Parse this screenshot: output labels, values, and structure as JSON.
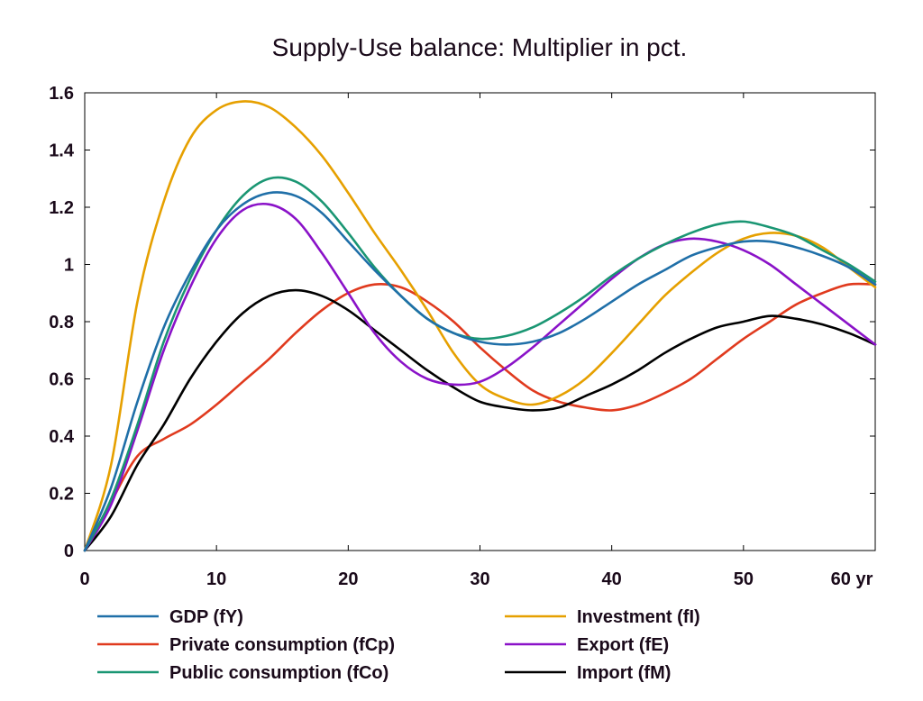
{
  "chart_data": {
    "type": "line",
    "title": "Supply-Use balance: Multiplier in pct.",
    "xlabel": "",
    "ylabel": "",
    "x_unit_label": "yr",
    "xlim": [
      0,
      60
    ],
    "ylim": [
      0,
      1.6
    ],
    "x_ticks": [
      0,
      10,
      20,
      30,
      40,
      50,
      60
    ],
    "x_tick_labels": [
      "0",
      "10",
      "20",
      "30",
      "40",
      "50",
      "60 yr"
    ],
    "y_ticks": [
      0,
      0.2,
      0.4,
      0.6,
      0.8,
      1.0,
      1.2,
      1.4,
      1.6
    ],
    "y_tick_labels": [
      "0",
      "0.2",
      "0.4",
      "0.6",
      "0.8",
      "1",
      "1.2",
      "1.4",
      "1.6"
    ],
    "grid": false,
    "legend_position": "bottom",
    "x": [
      0,
      2,
      4,
      6,
      8,
      10,
      12,
      14,
      16,
      18,
      20,
      22,
      24,
      26,
      28,
      30,
      32,
      34,
      36,
      38,
      40,
      42,
      44,
      46,
      48,
      50,
      52,
      54,
      56,
      58,
      60
    ],
    "series": [
      {
        "name": "GDP (fY)",
        "color": "#1f6fa8",
        "values": [
          0,
          0.22,
          0.52,
          0.78,
          0.97,
          1.12,
          1.21,
          1.25,
          1.24,
          1.18,
          1.08,
          0.98,
          0.89,
          0.81,
          0.76,
          0.73,
          0.72,
          0.73,
          0.76,
          0.81,
          0.87,
          0.93,
          0.98,
          1.03,
          1.06,
          1.08,
          1.08,
          1.06,
          1.03,
          0.99,
          0.93
        ]
      },
      {
        "name": "Private consumption (fCp)",
        "color": "#e03a1e",
        "values": [
          0,
          0.17,
          0.33,
          0.39,
          0.44,
          0.51,
          0.59,
          0.67,
          0.76,
          0.84,
          0.9,
          0.93,
          0.92,
          0.87,
          0.8,
          0.71,
          0.63,
          0.56,
          0.52,
          0.5,
          0.49,
          0.51,
          0.55,
          0.6,
          0.67,
          0.74,
          0.8,
          0.86,
          0.9,
          0.93,
          0.93
        ]
      },
      {
        "name": "Public consumption (fCo)",
        "color": "#1a9673",
        "values": [
          0,
          0.18,
          0.44,
          0.73,
          0.95,
          1.12,
          1.24,
          1.3,
          1.29,
          1.22,
          1.11,
          0.99,
          0.89,
          0.81,
          0.76,
          0.74,
          0.75,
          0.78,
          0.83,
          0.89,
          0.96,
          1.02,
          1.07,
          1.11,
          1.14,
          1.15,
          1.13,
          1.1,
          1.05,
          1.0,
          0.94
        ]
      },
      {
        "name": "Investment (fI)",
        "color": "#e6a000",
        "values": [
          0,
          0.3,
          0.87,
          1.22,
          1.44,
          1.54,
          1.57,
          1.55,
          1.48,
          1.38,
          1.25,
          1.11,
          0.98,
          0.84,
          0.69,
          0.58,
          0.53,
          0.51,
          0.54,
          0.6,
          0.69,
          0.79,
          0.89,
          0.97,
          1.04,
          1.09,
          1.11,
          1.1,
          1.06,
          0.99,
          0.92
        ]
      },
      {
        "name": "Export (fE)",
        "color": "#8a12c8",
        "values": [
          0,
          0.16,
          0.42,
          0.7,
          0.92,
          1.09,
          1.19,
          1.21,
          1.16,
          1.04,
          0.9,
          0.76,
          0.66,
          0.6,
          0.58,
          0.59,
          0.64,
          0.71,
          0.79,
          0.87,
          0.95,
          1.02,
          1.07,
          1.09,
          1.08,
          1.05,
          1.0,
          0.93,
          0.86,
          0.79,
          0.72
        ]
      },
      {
        "name": "Import (fM)",
        "color": "#000000",
        "values": [
          0,
          0.12,
          0.3,
          0.44,
          0.6,
          0.73,
          0.83,
          0.89,
          0.91,
          0.89,
          0.84,
          0.77,
          0.7,
          0.63,
          0.57,
          0.52,
          0.5,
          0.49,
          0.5,
          0.54,
          0.58,
          0.63,
          0.69,
          0.74,
          0.78,
          0.8,
          0.82,
          0.81,
          0.79,
          0.76,
          0.72
        ]
      }
    ],
    "legend_order": [
      "GDP (fY)",
      "Investment (fI)",
      "Private consumption (fCp)",
      "Export (fE)",
      "Public consumption (fCo)",
      "Import (fM)"
    ]
  }
}
